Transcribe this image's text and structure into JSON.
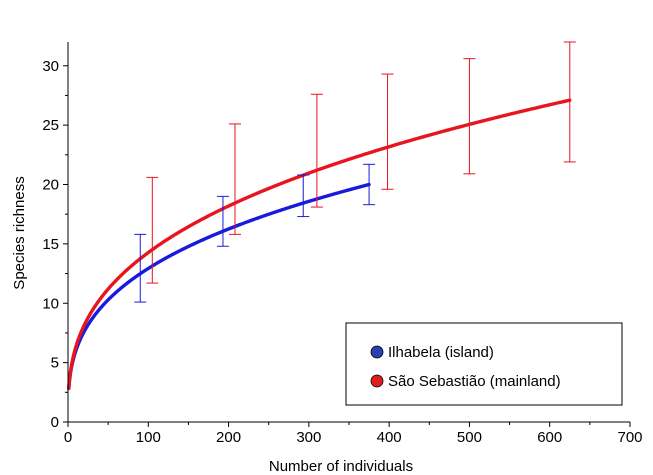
{
  "chart_data": {
    "type": "line",
    "xlabel": "Number of individuals",
    "ylabel": "Species richness",
    "xlim": [
      0,
      700
    ],
    "ylim": [
      0,
      32
    ],
    "x_ticks": [
      0,
      100,
      200,
      300,
      400,
      500,
      600,
      700
    ],
    "y_ticks": [
      0,
      5,
      10,
      15,
      20,
      25,
      30
    ],
    "grid": false,
    "legend_position": "bottom-right",
    "series": [
      {
        "name": "Ilhabela (island)",
        "color": "#1a1adc",
        "marker_color": "#2a3fb0",
        "max_x": 375,
        "max_y": 20.0,
        "shape_exponent": 0.33,
        "error_bars": [
          {
            "x": 90,
            "y": 12.9,
            "low": 10.1,
            "high": 15.8
          },
          {
            "x": 193,
            "y": 16.9,
            "low": 14.8,
            "high": 19.0
          },
          {
            "x": 293,
            "y": 19.1,
            "low": 17.3,
            "high": 20.8
          },
          {
            "x": 375,
            "y": 20.0,
            "low": 18.3,
            "high": 21.7
          }
        ]
      },
      {
        "name": "São Sebastião (mainland)",
        "color": "#e8141e",
        "marker_color": "#e01e1e",
        "max_x": 625,
        "max_y": 27.1,
        "shape_exponent": 0.35,
        "error_bars": [
          {
            "x": 105,
            "y": 16.1,
            "low": 11.7,
            "high": 20.6
          },
          {
            "x": 208,
            "y": 20.3,
            "low": 15.8,
            "high": 25.1
          },
          {
            "x": 310,
            "y": 22.7,
            "low": 18.1,
            "high": 27.6
          },
          {
            "x": 398,
            "y": 24.3,
            "low": 19.6,
            "high": 29.3
          },
          {
            "x": 500,
            "y": 25.7,
            "low": 20.9,
            "high": 30.6
          },
          {
            "x": 625,
            "y": 27.1,
            "low": 21.9,
            "high": 32.0
          }
        ]
      }
    ]
  }
}
